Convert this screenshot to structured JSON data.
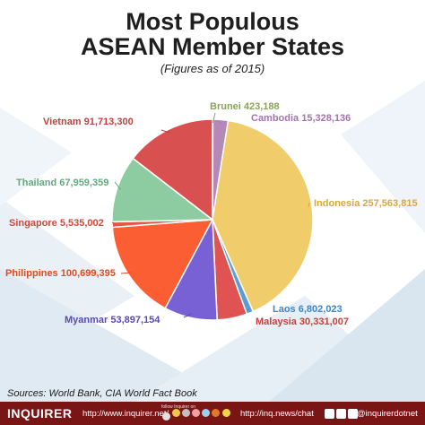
{
  "title_line1": "Most Populous",
  "title_line2": "ASEAN Member States",
  "subtitle": "(Figures as of 2015)",
  "sources": "Sources: World Bank, CIA World Fact Book",
  "footer": {
    "brand": "INQUIRER",
    "url_net": "http://www.inquirer.net/",
    "url_chat": "http://inq.news/chat",
    "handle": "@inquirerdotnet",
    "promo": "follow Inquirer on"
  },
  "chart_data": {
    "type": "pie",
    "title": "Most Populous ASEAN Member States",
    "subtitle": "(Figures as of 2015)",
    "slices": [
      {
        "name": "Brunei",
        "label": "Brunei 423,188",
        "value": 423188,
        "color": "#9db56a"
      },
      {
        "name": "Cambodia",
        "label": "Cambodia 15,328,136",
        "value": 15328136,
        "color": "#b589b7"
      },
      {
        "name": "Indonesia",
        "label": "Indonesia 257,563,815",
        "value": 257563815,
        "color": "#f1cc6b"
      },
      {
        "name": "Laos",
        "label": "Laos 6,802,023",
        "value": 6802023,
        "color": "#5b9bd1"
      },
      {
        "name": "Malaysia",
        "label": "Malaysia 30,331,007",
        "value": 30331007,
        "color": "#df5353"
      },
      {
        "name": "Myanmar",
        "label": "Myanmar 53,897,154",
        "value": 53897154,
        "color": "#7861d4"
      },
      {
        "name": "Philippines",
        "label": "Philippines 100,699,395",
        "value": 100699395,
        "color": "#fb5e33"
      },
      {
        "name": "Singapore",
        "label": "Singapore 5,535,002",
        "value": 5535002,
        "color": "#e25a48"
      },
      {
        "name": "Thailand",
        "label": "Thailand 67,959,359",
        "value": 67959359,
        "color": "#8dcca0"
      },
      {
        "name": "Vietnam",
        "label": "Vietnam 91,713,300",
        "value": 91713300,
        "color": "#d95050"
      }
    ],
    "label_colors": {
      "Brunei": "#8aa35a",
      "Cambodia": "#a473ad",
      "Indonesia": "#d9a83a",
      "Laos": "#3f86c6",
      "Malaysia": "#cc3b3b",
      "Myanmar": "#5a48b8",
      "Philippines": "#e04a1f",
      "Singapore": "#d04a3a",
      "Thailand": "#66a97d",
      "Vietnam": "#c23f3f"
    }
  }
}
